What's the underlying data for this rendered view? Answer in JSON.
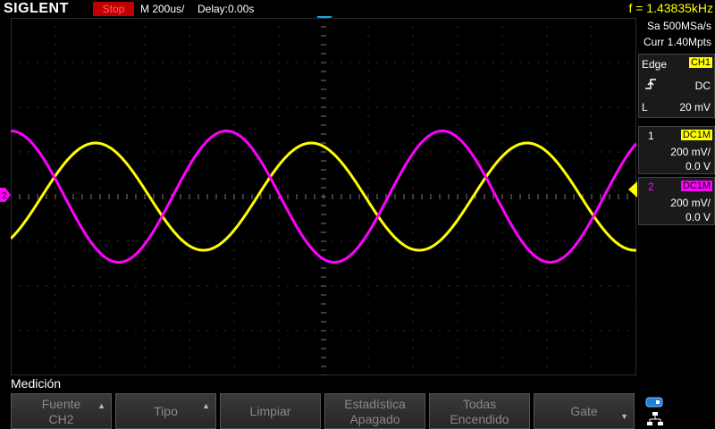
{
  "header": {
    "brand": "SIGLENT",
    "run_state": "Stop",
    "timebase": "M 200us/",
    "delay": "Delay:0.00s",
    "frequency": "f = 1.43835kHz"
  },
  "acquisition": {
    "sample_rate": "Sa 500MSa/s",
    "memory_depth": "Curr 1.40Mpts"
  },
  "trigger": {
    "type": "Edge",
    "source": "CH1",
    "coupling": "DC",
    "level_label": "L",
    "level": "20 mV"
  },
  "channels": [
    {
      "number": "1",
      "coupling": "DC1M",
      "scale": "200 mV/",
      "offset": "0.0 V",
      "color": "#ffff00"
    },
    {
      "number": "2",
      "coupling": "DC1M",
      "scale": "200 mV/",
      "offset": "0.0 V",
      "color": "#ff00ff"
    }
  ],
  "menu": {
    "title": "Medición",
    "softkeys": [
      {
        "line1": "Fuente",
        "line2": "CH2",
        "arrow": "up"
      },
      {
        "line1": "Tipo",
        "line2": "",
        "arrow": "up"
      },
      {
        "line1": "Limpiar",
        "line2": "",
        "arrow": ""
      },
      {
        "line1": "Estadística",
        "line2": "Apagado",
        "arrow": ""
      },
      {
        "line1": "Todas",
        "line2": "Encendido",
        "arrow": ""
      },
      {
        "line1": "Gate",
        "line2": "",
        "arrow": "down"
      }
    ]
  },
  "markers": {
    "ch2_ground_label": "2"
  },
  "waveforms": {
    "ch1": {
      "periods_per_screen": 2.9,
      "amplitude_divs": 2.0,
      "color": "#ffff00"
    },
    "ch2": {
      "periods_per_screen": 2.9,
      "amplitude_divs": 2.45,
      "color": "#ff00ff"
    }
  },
  "status_icons": [
    "usb-icon",
    "network-icon"
  ]
}
